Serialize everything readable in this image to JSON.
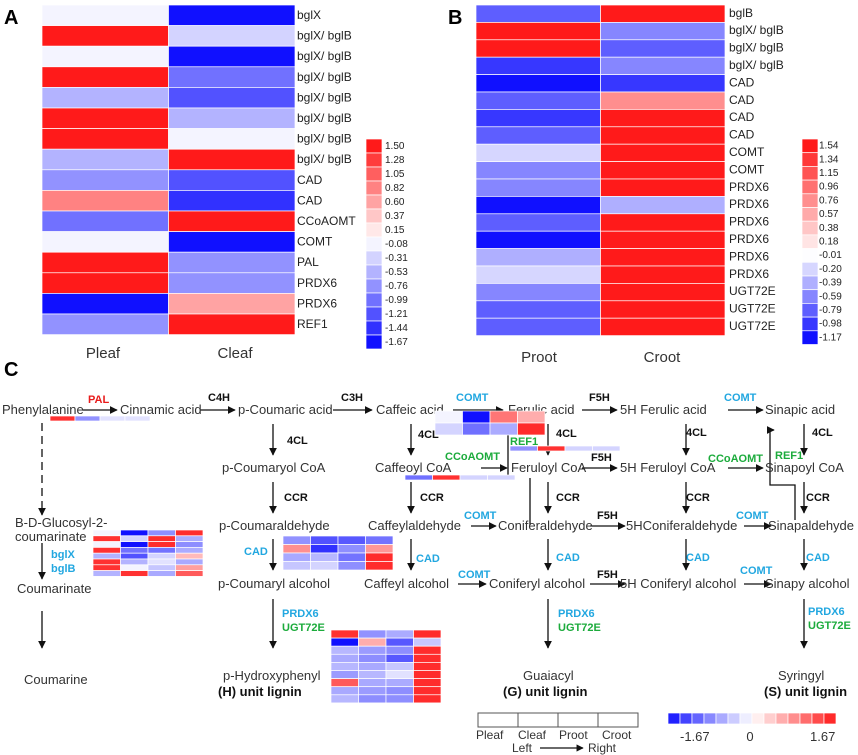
{
  "colors": {
    "low": "#1010ff",
    "mid": "#ffffff",
    "high": "#ff1a1a",
    "enzyme_cyan": "#22a7e0",
    "enzyme_green": "#1cab3c",
    "enzyme_red": "#e81b1b"
  },
  "panel_labels": {
    "a": "A",
    "b": "B",
    "c": "C"
  },
  "panel_a": {
    "columns": [
      "Pleaf",
      "Cleaf"
    ],
    "rows": [
      {
        "gene": "bglX",
        "values": [
          -0.08,
          -1.67
        ]
      },
      {
        "gene": "bglX/ bglB",
        "values": [
          1.5,
          -0.31
        ]
      },
      {
        "gene": "bglX/ bglB",
        "values": [
          -0.08,
          -1.67
        ]
      },
      {
        "gene": "bglX/ bglB",
        "values": [
          1.5,
          -0.99
        ]
      },
      {
        "gene": "bglX/ bglB",
        "values": [
          -0.53,
          -1.21
        ]
      },
      {
        "gene": "bglX/ bglB",
        "values": [
          1.5,
          -0.53
        ]
      },
      {
        "gene": "bglX/ bglB",
        "values": [
          1.5,
          -0.08
        ]
      },
      {
        "gene": "bglX/ bglB",
        "values": [
          -0.53,
          1.5
        ]
      },
      {
        "gene": "CAD",
        "values": [
          -0.76,
          -1.21
        ]
      },
      {
        "gene": "CAD",
        "values": [
          0.82,
          -1.44
        ]
      },
      {
        "gene": "CCoAOMT",
        "values": [
          -0.99,
          1.5
        ]
      },
      {
        "gene": "COMT",
        "values": [
          -0.08,
          -1.67
        ]
      },
      {
        "gene": "PAL",
        "values": [
          1.5,
          -0.76
        ]
      },
      {
        "gene": "PRDX6",
        "values": [
          1.5,
          -0.76
        ]
      },
      {
        "gene": "PRDX6",
        "values": [
          -1.67,
          0.6
        ]
      },
      {
        "gene": "REF1",
        "values": [
          -0.76,
          1.5
        ]
      }
    ],
    "legend": {
      "ticks": [
        "1.50",
        "1.28",
        "1.05",
        "0.82",
        "0.60",
        "0.37",
        "0.15",
        "-0.08",
        "-0.31",
        "-0.53",
        "-0.76",
        "-0.99",
        "-1.21",
        "-1.44",
        "-1.67"
      ],
      "values": [
        1.5,
        1.28,
        1.05,
        0.82,
        0.6,
        0.37,
        0.15,
        -0.08,
        -0.31,
        -0.53,
        -0.76,
        -0.99,
        -1.21,
        -1.44,
        -1.67
      ],
      "min": -1.67,
      "max": 1.5
    }
  },
  "panel_b": {
    "columns": [
      "Proot",
      "Croot"
    ],
    "rows": [
      {
        "gene": "bglB",
        "values": [
          -0.79,
          1.54
        ]
      },
      {
        "gene": "bglX/ bglB",
        "values": [
          1.54,
          -0.59
        ]
      },
      {
        "gene": "bglX/ bglB",
        "values": [
          1.54,
          -0.79
        ]
      },
      {
        "gene": "bglX/ bglB",
        "values": [
          -0.98,
          -0.59
        ]
      },
      {
        "gene": "CAD",
        "values": [
          -1.17,
          -0.98
        ]
      },
      {
        "gene": "CAD",
        "values": [
          -0.79,
          0.76
        ]
      },
      {
        "gene": "CAD",
        "values": [
          -0.98,
          1.54
        ]
      },
      {
        "gene": "CAD",
        "values": [
          -0.79,
          1.54
        ]
      },
      {
        "gene": "COMT",
        "values": [
          -0.2,
          1.54
        ]
      },
      {
        "gene": "COMT",
        "values": [
          -0.59,
          1.54
        ]
      },
      {
        "gene": "PRDX6",
        "values": [
          -0.59,
          1.54
        ]
      },
      {
        "gene": "PRDX6",
        "values": [
          -1.17,
          -0.39
        ]
      },
      {
        "gene": "PRDX6",
        "values": [
          -0.79,
          1.54
        ]
      },
      {
        "gene": "PRDX6",
        "values": [
          -1.17,
          1.54
        ]
      },
      {
        "gene": "PRDX6",
        "values": [
          -0.39,
          1.54
        ]
      },
      {
        "gene": "PRDX6",
        "values": [
          -0.2,
          1.54
        ]
      },
      {
        "gene": "UGT72E",
        "values": [
          -0.59,
          1.54
        ]
      },
      {
        "gene": "UGT72E",
        "values": [
          -0.79,
          1.54
        ]
      },
      {
        "gene": "UGT72E",
        "values": [
          -0.79,
          1.54
        ]
      }
    ],
    "legend": {
      "ticks": [
        "1.54",
        "1.34",
        "1.15",
        "0.96",
        "0.76",
        "0.57",
        "0.38",
        "0.18",
        "-0.01",
        "-0.20",
        "-0.39",
        "-0.59",
        "-0.79",
        "-0.98",
        "-1.17"
      ],
      "values": [
        1.54,
        1.34,
        1.15,
        0.96,
        0.76,
        0.57,
        0.38,
        0.18,
        -0.01,
        -0.2,
        -0.39,
        -0.59,
        -0.79,
        -0.98,
        -1.17
      ],
      "min": -1.17,
      "max": 1.54
    }
  },
  "pathway": {
    "compounds": {
      "phenylalanine": "Phenylalanine",
      "cinnamic_acid": "Cinnamic acid",
      "p_coumaric_acid": "p-Coumaric acid",
      "caffeic_acid": "Caffeic acid",
      "ferulic_acid": "Ferulic acid",
      "five_h_ferulic_acid": "5H Ferulic acid",
      "sinapic_acid": "Sinapic acid",
      "p_coumaroyl_coa": "p-Coumaryol CoA",
      "caffeoyl_coa": "Caffeoyl CoA",
      "feruloyl_coa": "Feruloyl CoA",
      "five_h_feruloyl_coa": "5H Feruloyl CoA",
      "sinapoyl_coa": "Sinapoyl CoA",
      "glucosyl_1": "B-D-Glucosyl-2-",
      "glucosyl_2": "coumarinate",
      "p_coumaraldehyde": "p-Coumaraldehyde",
      "caffeylaldehyde": "Caffeylaldehyde",
      "coniferaldehyde": "Coniferaldehyde",
      "five_h_coniferaldehyde": "5HConiferaldehyde",
      "sinapaldehyde": "Sinapaldehyde",
      "coumarinate": "Coumarinate",
      "p_coumaryl_alcohol": "p-Coumaryl alcohol",
      "caffeyl_alcohol": "Caffeyl alcohol",
      "coniferyl_alcohol": "Coniferyl alcohol",
      "five_h_coniferyl_alcohol": "5H Coniferyl alcohol",
      "sinapy_alcohol": "Sinapy alcohol",
      "coumarine": "Coumarine",
      "p_hydroxyphenyl": "p-Hydroxyphenyl",
      "h_lignin": "(H) unit lignin",
      "guaiacyl": "Guaiacyl",
      "g_lignin": "(G) unit lignin",
      "syringyl": "Syringyl",
      "s_lignin": "(S) unit lignin"
    },
    "enzymes": {
      "pal": "PAL",
      "c4h": "C4H",
      "c3h": "C3H",
      "comt": "COMT",
      "f5h": "F5H",
      "four_cl": "4CL",
      "ccoaomt": "CCoAOMT",
      "ref1": "REF1",
      "ccr": "CCR",
      "cad": "CAD",
      "bglx": "bglX",
      "bglb": "bglB",
      "prdx6": "PRDX6",
      "ugt72e": "UGT72E"
    },
    "mini_heatmaps": {
      "pal": [
        [
          1.5,
          -0.76,
          -0.2,
          -0.2
        ]
      ],
      "comt": [
        [
          -0.08,
          -1.67,
          1.0,
          0.6
        ],
        [
          -0.3,
          -1.0,
          -0.59,
          1.54
        ]
      ],
      "ref1": [
        [
          -0.76,
          1.5,
          -0.3,
          -0.3
        ]
      ],
      "ccoaomt": [
        [
          -0.99,
          1.5,
          -0.3,
          -0.3
        ]
      ],
      "bgl": [
        [
          -0.08,
          -1.67,
          -0.79,
          1.54
        ],
        [
          1.5,
          -0.31,
          1.54,
          -0.59
        ],
        [
          -0.08,
          -1.67,
          1.54,
          -0.79
        ],
        [
          1.5,
          -0.99,
          -0.98,
          -0.59
        ],
        [
          -0.53,
          -1.21,
          -0.3,
          0.5
        ],
        [
          1.5,
          -0.53,
          -0.2,
          -0.6
        ],
        [
          1.5,
          -0.08,
          -0.4,
          0.7
        ],
        [
          -0.53,
          1.5,
          -0.6,
          1.2
        ]
      ],
      "cad": [
        [
          -0.76,
          -1.21,
          -1.17,
          -0.98
        ],
        [
          0.82,
          -1.44,
          -0.79,
          0.76
        ],
        [
          -0.6,
          -0.5,
          -0.98,
          1.54
        ],
        [
          -0.4,
          -0.3,
          -0.79,
          1.54
        ]
      ],
      "prdx6": [
        [
          1.5,
          -0.76,
          -0.59,
          1.54
        ],
        [
          -1.67,
          0.6,
          -1.17,
          -0.39
        ],
        [
          -0.5,
          -0.7,
          -0.79,
          1.54
        ],
        [
          -0.6,
          -0.8,
          -1.17,
          1.54
        ],
        [
          -0.5,
          -0.6,
          -0.39,
          1.54
        ],
        [
          -0.7,
          -0.5,
          -0.2,
          1.54
        ],
        [
          1.2,
          -0.6,
          -0.59,
          1.54
        ],
        [
          -0.6,
          -0.7,
          -0.79,
          1.54
        ],
        [
          -0.5,
          -0.8,
          -0.79,
          1.54
        ]
      ]
    },
    "key": {
      "columns": [
        "Pleaf",
        "Cleaf",
        "Proot",
        "Croot"
      ],
      "left": "Left",
      "right": "Right",
      "scale_min": "-1.67",
      "scale_mid": "0",
      "scale_max": "1.67"
    }
  }
}
